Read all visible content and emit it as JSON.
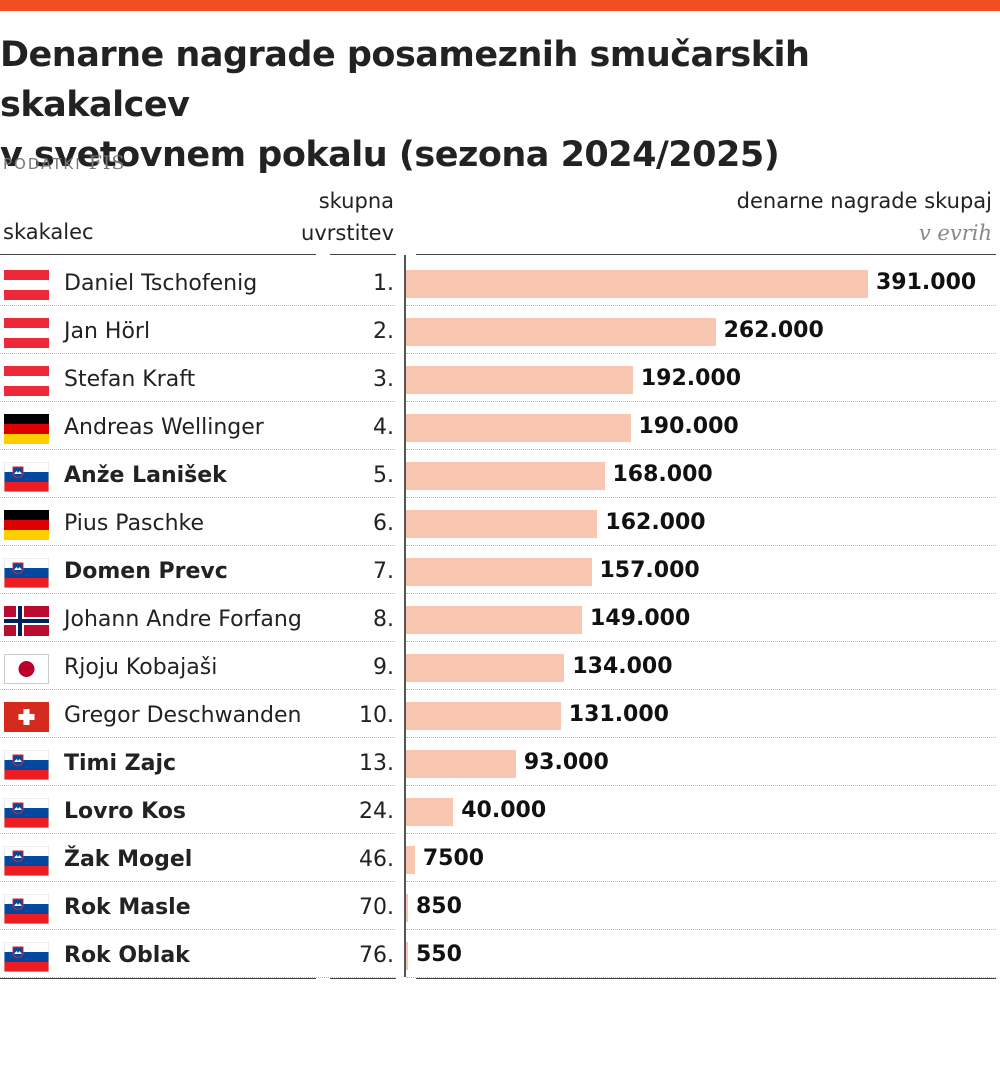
{
  "title_line1": "Denarne nagrade posameznih smučarskih skakalcev",
  "title_line2": "v svetovnem pokalu (sezona 2024/2025)",
  "source_label": "PODATKI",
  "source_name": "FIS",
  "header": {
    "name": "skakalec",
    "rank_line1": "skupna",
    "rank_line2": "uvrstitev",
    "prize_line1": "denarne nagrade skupaj",
    "prize_unit": "v evrih"
  },
  "colors": {
    "accent": "#f04e23",
    "bar": "#f8c6b1"
  },
  "chart_data": {
    "type": "bar",
    "orientation": "horizontal",
    "title": "Denarne nagrade posameznih smučarskih skakalcev v svetovnem pokalu (sezona 2024/2025)",
    "xlabel": "denarne nagrade skupaj v evrih",
    "ylabel": "skakalec",
    "xlim": [
      0,
      391000
    ],
    "rows": [
      {
        "name": "Daniel Tschofenig",
        "country": "austria",
        "highlight": false,
        "rank": "1.",
        "value": 391000,
        "label": "391.000"
      },
      {
        "name": "Jan Hörl",
        "country": "austria",
        "highlight": false,
        "rank": "2.",
        "value": 262000,
        "label": "262.000"
      },
      {
        "name": "Stefan Kraft",
        "country": "austria",
        "highlight": false,
        "rank": "3.",
        "value": 192000,
        "label": "192.000"
      },
      {
        "name": "Andreas Wellinger",
        "country": "germany",
        "highlight": false,
        "rank": "4.",
        "value": 190000,
        "label": "190.000"
      },
      {
        "name": "Anže Lanišek",
        "country": "slovenia",
        "highlight": true,
        "rank": "5.",
        "value": 168000,
        "label": "168.000"
      },
      {
        "name": "Pius Paschke",
        "country": "germany",
        "highlight": false,
        "rank": "6.",
        "value": 162000,
        "label": "162.000"
      },
      {
        "name": "Domen Prevc",
        "country": "slovenia",
        "highlight": true,
        "rank": "7.",
        "value": 157000,
        "label": "157.000"
      },
      {
        "name": "Johann Andre Forfang",
        "country": "norway",
        "highlight": false,
        "rank": "8.",
        "value": 149000,
        "label": "149.000"
      },
      {
        "name": "Rjoju Kobajaši",
        "country": "japan",
        "highlight": false,
        "rank": "9.",
        "value": 134000,
        "label": "134.000"
      },
      {
        "name": "Gregor Deschwanden",
        "country": "switzerland",
        "highlight": false,
        "rank": "10.",
        "value": 131000,
        "label": "131.000"
      },
      {
        "name": "Timi Zajc",
        "country": "slovenia",
        "highlight": true,
        "rank": "13.",
        "value": 93000,
        "label": "93.000"
      },
      {
        "name": "Lovro Kos",
        "country": "slovenia",
        "highlight": true,
        "rank": "24.",
        "value": 40000,
        "label": "40.000"
      },
      {
        "name": "Žak Mogel",
        "country": "slovenia",
        "highlight": true,
        "rank": "46.",
        "value": 7500,
        "label": "7500"
      },
      {
        "name": "Rok Masle",
        "country": "slovenia",
        "highlight": true,
        "rank": "70.",
        "value": 850,
        "label": "850"
      },
      {
        "name": "Rok Oblak",
        "country": "slovenia",
        "highlight": true,
        "rank": "76.",
        "value": 550,
        "label": "550"
      }
    ]
  }
}
